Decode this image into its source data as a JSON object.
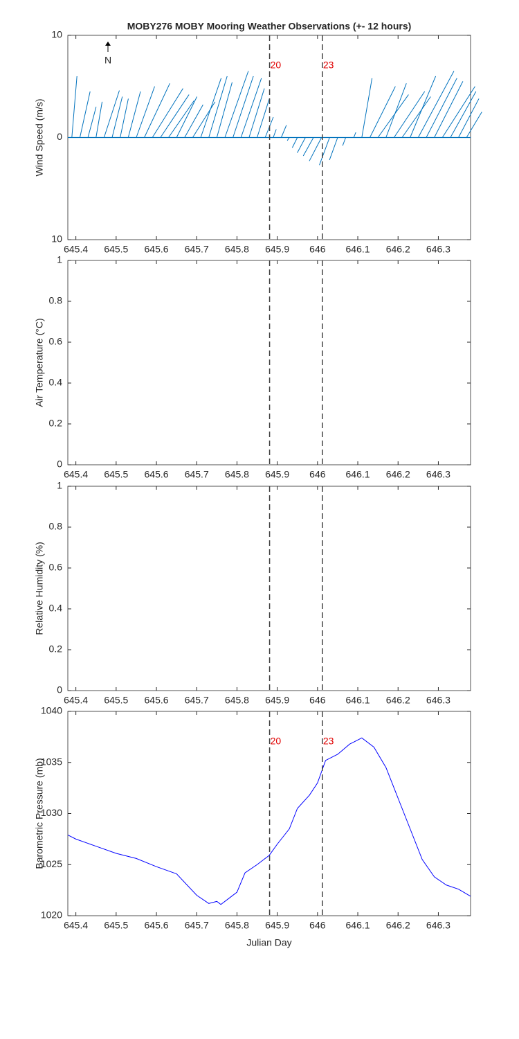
{
  "markers": {
    "x": [
      645.881,
      646.012
    ],
    "labels": [
      "20",
      "23"
    ],
    "color": "#e00000"
  },
  "chart_data": [
    {
      "type": "stick",
      "title": "MOBY276 MOBY Mooring Weather Observations (+- 12 hours)",
      "ylabel": "Wind Speed (m/s)",
      "north_label": "N",
      "xlim": [
        645.38,
        646.38
      ],
      "xticks": [
        645.4,
        645.5,
        645.6,
        645.7,
        645.8,
        645.9,
        646,
        646.1,
        646.2,
        646.3
      ],
      "ylim": [
        -10,
        10
      ],
      "yticks": [
        {
          "value": -10,
          "label": "10"
        },
        0,
        10
      ],
      "show_marker_labels": true,
      "color": "#0072bd",
      "x": [
        645.39,
        645.41,
        645.43,
        645.45,
        645.47,
        645.49,
        645.51,
        645.53,
        645.55,
        645.57,
        645.59,
        645.61,
        645.63,
        645.65,
        645.67,
        645.69,
        645.71,
        645.73,
        645.75,
        645.77,
        645.79,
        645.81,
        645.83,
        645.85,
        645.87,
        645.89,
        645.91,
        645.93,
        645.95,
        645.97,
        645.99,
        646.01,
        646.03,
        646.05,
        646.07,
        646.09,
        646.11,
        646.13,
        646.15,
        646.17,
        646.19,
        646.21,
        646.23,
        646.25,
        646.27,
        646.29,
        646.31,
        646.33,
        646.35,
        646.37
      ],
      "u": [
        0.5,
        1.0,
        0.8,
        0.6,
        1.5,
        1.0,
        0.8,
        1.2,
        1.8,
        2.5,
        3.0,
        2.8,
        2.5,
        2.0,
        1.8,
        2.2,
        2.0,
        1.8,
        1.5,
        2.3,
        2.0,
        2.0,
        1.5,
        1.2,
        0.8,
        0.3,
        0.5,
        -0.2,
        -0.5,
        -0.8,
        -1.0,
        -1.2,
        -1.0,
        -0.8,
        -0.3,
        0.2,
        1.0,
        2.5,
        3.0,
        2.0,
        3.0,
        2.8,
        2.5,
        3.5,
        3.0,
        2.8,
        3.2,
        2.5,
        2.0,
        1.5
      ],
      "v": [
        6.0,
        4.5,
        3.0,
        3.5,
        4.6,
        4.0,
        3.8,
        4.5,
        5.0,
        5.3,
        4.8,
        4.2,
        3.6,
        4.0,
        3.2,
        3.5,
        5.8,
        6.0,
        5.4,
        6.5,
        6.0,
        5.8,
        4.8,
        3.8,
        2.0,
        0.8,
        1.2,
        -0.3,
        -1.0,
        -1.5,
        -1.8,
        -2.3,
        -2.7,
        -2.2,
        -0.8,
        0.5,
        5.8,
        5.0,
        4.2,
        5.3,
        4.5,
        4.0,
        6.0,
        6.5,
        5.8,
        5.5,
        5.0,
        4.5,
        3.8,
        2.5
      ]
    },
    {
      "type": "line",
      "ylabel": "Air Temperature (°C)",
      "xlim": [
        645.38,
        646.38
      ],
      "xticks": [
        645.4,
        645.5,
        645.6,
        645.7,
        645.8,
        645.9,
        646,
        646.1,
        646.2,
        646.3
      ],
      "ylim": [
        0,
        1
      ],
      "yticks": [
        0,
        0.2,
        0.4,
        0.6,
        0.8,
        1
      ],
      "show_marker_labels": false,
      "series": []
    },
    {
      "type": "line",
      "ylabel": "Relative Humidity (%)",
      "xlim": [
        645.38,
        646.38
      ],
      "xticks": [
        645.4,
        645.5,
        645.6,
        645.7,
        645.8,
        645.9,
        646,
        646.1,
        646.2,
        646.3
      ],
      "ylim": [
        0,
        1
      ],
      "yticks": [
        0,
        0.2,
        0.4,
        0.6,
        0.8,
        1
      ],
      "show_marker_labels": false,
      "series": []
    },
    {
      "type": "line",
      "ylabel": "Barometric Pressure (mb)",
      "xlabel": "Julian Day",
      "xlim": [
        645.38,
        646.38
      ],
      "xticks": [
        645.4,
        645.5,
        645.6,
        645.7,
        645.8,
        645.9,
        646,
        646.1,
        646.2,
        646.3
      ],
      "ylim": [
        1020,
        1040
      ],
      "yticks": [
        1020,
        1025,
        1030,
        1035,
        1040
      ],
      "show_marker_labels": true,
      "x": [
        645.38,
        645.4,
        645.45,
        645.5,
        645.55,
        645.6,
        645.65,
        645.7,
        645.73,
        645.75,
        645.76,
        645.78,
        645.8,
        645.82,
        645.85,
        645.88,
        645.9,
        645.93,
        645.95,
        645.98,
        646.0,
        646.02,
        646.05,
        646.08,
        646.11,
        646.14,
        646.17,
        646.2,
        646.23,
        646.26,
        646.29,
        646.32,
        646.35,
        646.38
      ],
      "series": [
        {
          "color": "#0000ff",
          "values": [
            1027.9,
            1027.5,
            1026.8,
            1026.1,
            1025.6,
            1024.8,
            1024.1,
            1022.0,
            1021.2,
            1021.4,
            1021.1,
            1021.7,
            1022.3,
            1024.2,
            1025.0,
            1025.9,
            1027.0,
            1028.5,
            1030.5,
            1031.8,
            1033.0,
            1035.2,
            1035.8,
            1036.8,
            1037.4,
            1036.5,
            1034.5,
            1031.5,
            1028.5,
            1025.5,
            1023.8,
            1023.0,
            1022.6,
            1021.9
          ]
        }
      ]
    }
  ]
}
